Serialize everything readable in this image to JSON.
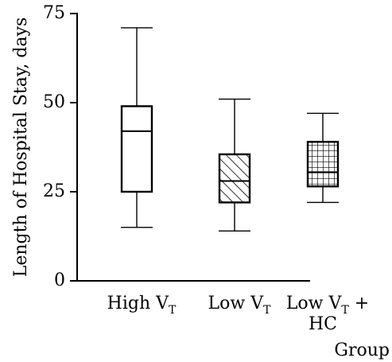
{
  "chart_data": {
    "type": "boxplot",
    "ylabel": "Length of Hospital Stay, days",
    "xlabel": "Group",
    "ylim": [
      0,
      75
    ],
    "yticks": [
      0,
      25,
      50,
      75
    ],
    "grid": false,
    "series": [
      {
        "label_main": "High V",
        "label_sub": "T",
        "label_suffix": "",
        "label_line2": "",
        "pattern": "none",
        "min": 15,
        "q1": 25,
        "median": 42,
        "q3": 49,
        "max": 71
      },
      {
        "label_main": "Low V",
        "label_sub": "T",
        "label_suffix": "",
        "label_line2": "",
        "pattern": "diagonal-hatch",
        "min": 14,
        "q1": 22,
        "median": 28,
        "q3": 35.5,
        "max": 51
      },
      {
        "label_main": "Low V",
        "label_sub": "T",
        "label_suffix": " +",
        "label_line2": "HC",
        "pattern": "grid-hatch",
        "min": 22,
        "q1": 26.5,
        "median": 30.5,
        "q3": 39,
        "max": 47
      }
    ]
  }
}
